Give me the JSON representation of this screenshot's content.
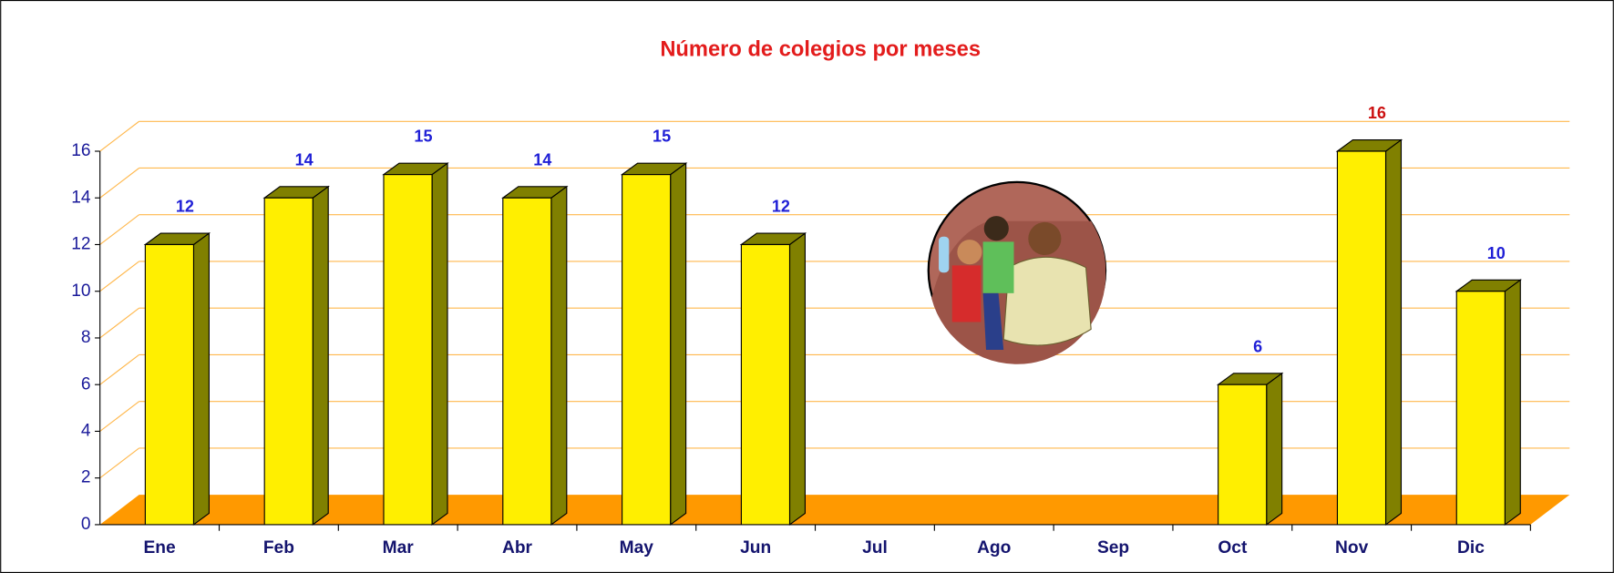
{
  "chart_data": {
    "type": "bar3d",
    "title": "Número de colegios por meses",
    "categories": [
      "Ene",
      "Feb",
      "Mar",
      "Abr",
      "May",
      "Jun",
      "Jul",
      "Ago",
      "Sep",
      "Oct",
      "Nov",
      "Dic"
    ],
    "values": [
      12,
      14,
      15,
      14,
      15,
      12,
      null,
      null,
      null,
      6,
      16,
      10
    ],
    "label_colors": [
      "#1f1fd6",
      "#1f1fd6",
      "#1f1fd6",
      "#1f1fd6",
      "#1f1fd6",
      "#1f1fd6",
      "#1f1fd6",
      "#1f1fd6",
      "#1f1fd6",
      "#1f1fd6",
      "#cc1111",
      "#1f1fd6"
    ],
    "color": "#ffef00",
    "side_color": "#808000",
    "floor_color": "#ff9900",
    "grid_color": "#ffb84d",
    "ylim": [
      0,
      16
    ],
    "yticks": [
      0,
      2,
      4,
      6,
      8,
      10,
      12,
      14,
      16
    ],
    "grid": true
  }
}
